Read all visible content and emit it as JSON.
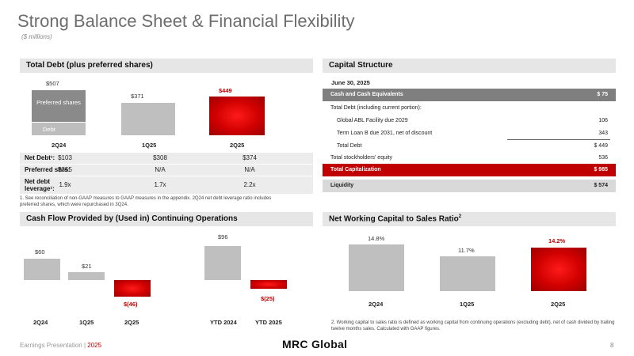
{
  "header": {
    "title": "Strong Balance Sheet & Financial Flexibility",
    "subtitle": "($ millions)"
  },
  "debt_panel": {
    "title": "Total Debt (plus preferred shares)",
    "bars": [
      {
        "period": "2Q24",
        "total": "$507",
        "preferred_label": "Preferred shares",
        "debt_label": "Debt"
      },
      {
        "period": "1Q25",
        "total": "$371"
      },
      {
        "period": "2Q25",
        "total": "$449"
      }
    ],
    "rows": [
      {
        "label": "Net Debt¹:",
        "values": [
          "$103",
          "$308",
          "$374"
        ]
      },
      {
        "label": "Preferred shrs:",
        "values": [
          "$355",
          "N/A",
          "N/A"
        ]
      },
      {
        "label": "Net debt leverage¹:",
        "values": [
          "1.9x",
          "1.7x",
          "2.2x"
        ]
      }
    ],
    "footnote": "1.   See reconciliation of non-GAAP measures to GAAP measures in the appendix. 2Q24 net debt leverage ratio includes preferred shares, which were repurchased in 3Q24."
  },
  "capital_panel": {
    "title": "Capital Structure",
    "date": "June 30, 2025",
    "rows": [
      {
        "label": "Cash and Cash Equivalents",
        "value": "$ 75"
      },
      {
        "label": "Total Debt (including current portion):",
        "value": ""
      },
      {
        "label": "Global ABL Facility due 2029",
        "value": "106"
      },
      {
        "label": "Term Loan B due 2031, net of discount",
        "value": "343"
      },
      {
        "label": "Total Debt",
        "value": "$ 449"
      },
      {
        "label": "Total stockholders' equity",
        "value": "536"
      },
      {
        "label": "Total Capitalization",
        "value": "$ 985"
      },
      {
        "label": "Liquidity",
        "value": "$ 574"
      }
    ]
  },
  "cashflow_panel": {
    "title": "Cash Flow Provided by (Used in) Continuing Operations",
    "periods": [
      "2Q24",
      "1Q25",
      "2Q25",
      "YTD 2024",
      "YTD 2025"
    ],
    "labels": [
      "$60",
      "$21",
      "$(46)",
      "$96",
      "$(25)"
    ]
  },
  "nwc_panel": {
    "title": "Net Working Capital to Sales Ratio",
    "title_sup": "2",
    "periods": [
      "2Q24",
      "1Q25",
      "2Q25"
    ],
    "labels": [
      "14.8%",
      "11.7%",
      "14.2%"
    ],
    "footnote": "2.   Working capital to sales ratio is defined as working capital from continuing operations (excluding debt), net of cash divided by trailing twelve months sales. Calculated with GAAP figures."
  },
  "footer": {
    "left": "Earnings Presentation | ",
    "year": "2025",
    "brand": "MRC Global",
    "page": "8"
  },
  "chart_data": [
    {
      "type": "bar",
      "title": "Total Debt (plus preferred shares)",
      "categories": [
        "2Q24",
        "1Q25",
        "2Q25"
      ],
      "series": [
        {
          "name": "Debt",
          "values": [
            152,
            371,
            449
          ]
        },
        {
          "name": "Preferred shares",
          "values": [
            355,
            0,
            0
          ]
        }
      ],
      "totals": [
        507,
        371,
        449
      ],
      "ylim": [
        0,
        520
      ]
    },
    {
      "type": "bar",
      "title": "Cash Flow Provided by (Used in) Continuing Operations",
      "categories": [
        "2Q24",
        "1Q25",
        "2Q25",
        "YTD 2024",
        "YTD 2025"
      ],
      "values": [
        60,
        21,
        -46,
        96,
        -25
      ],
      "ylim": [
        -60,
        100
      ]
    },
    {
      "type": "bar",
      "title": "Net Working Capital to Sales Ratio",
      "categories": [
        "2Q24",
        "1Q25",
        "2Q25"
      ],
      "values": [
        14.8,
        11.7,
        14.2
      ],
      "ylabel": "%",
      "ylim": [
        0,
        16
      ]
    }
  ]
}
